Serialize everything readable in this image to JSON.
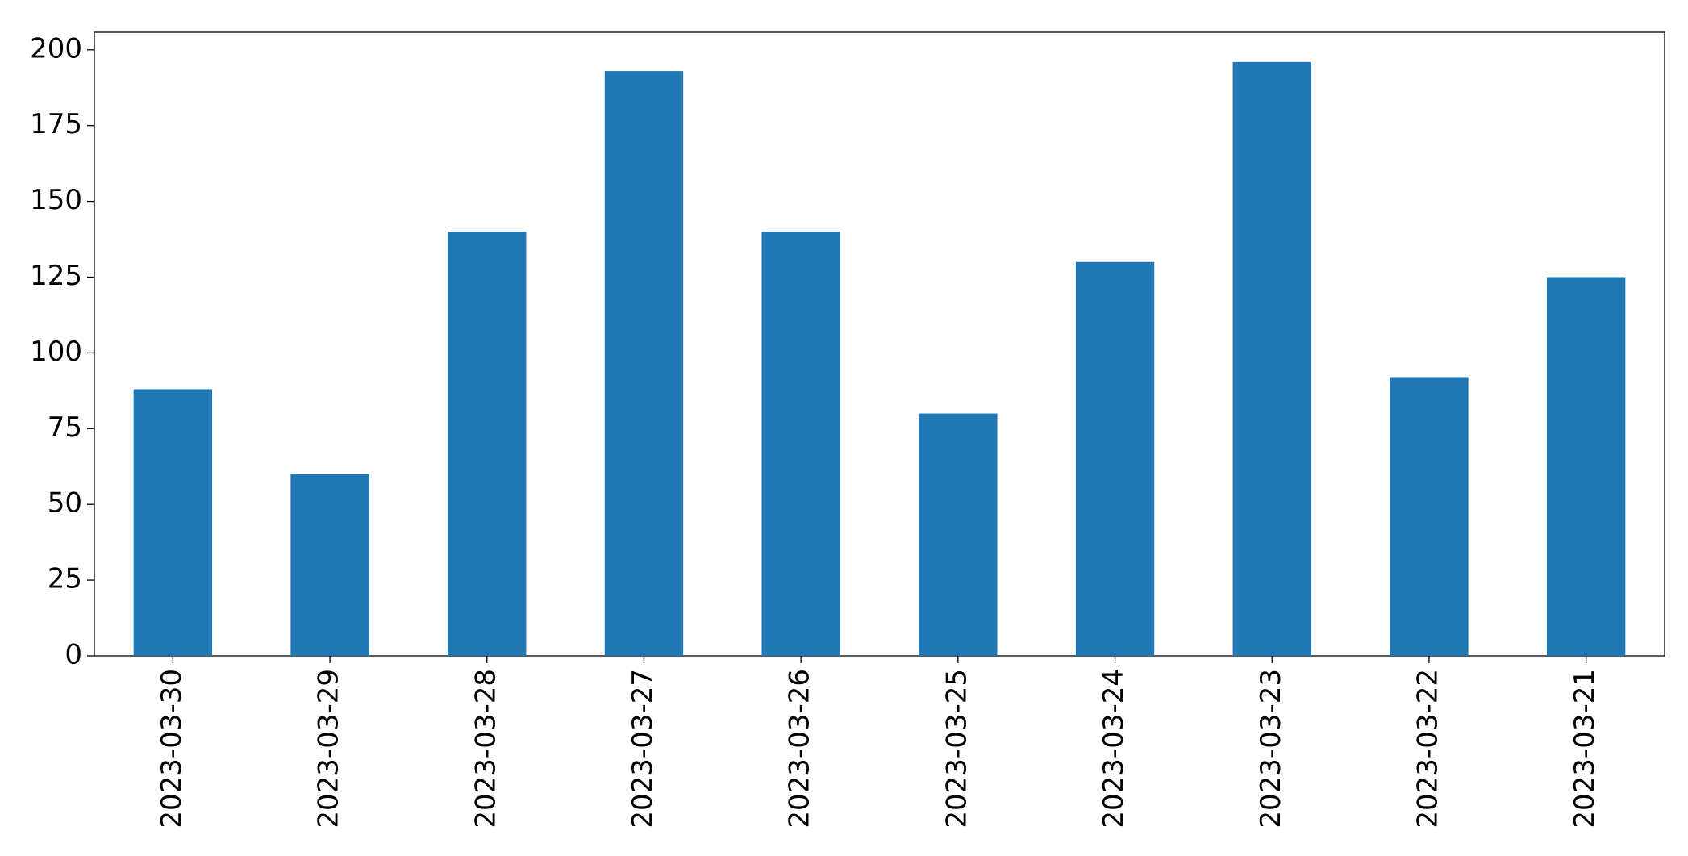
{
  "chart_data": {
    "type": "bar",
    "categories": [
      "2023-03-30",
      "2023-03-29",
      "2023-03-28",
      "2023-03-27",
      "2023-03-26",
      "2023-03-25",
      "2023-03-24",
      "2023-03-23",
      "2023-03-22",
      "2023-03-21"
    ],
    "values": [
      88,
      60,
      140,
      193,
      140,
      80,
      130,
      196,
      92,
      125
    ],
    "color": "#1f77b4",
    "ylim": [
      0,
      205.8
    ],
    "yticks": [
      0,
      25,
      50,
      75,
      100,
      125,
      150,
      175,
      200
    ],
    "grid": false
  }
}
